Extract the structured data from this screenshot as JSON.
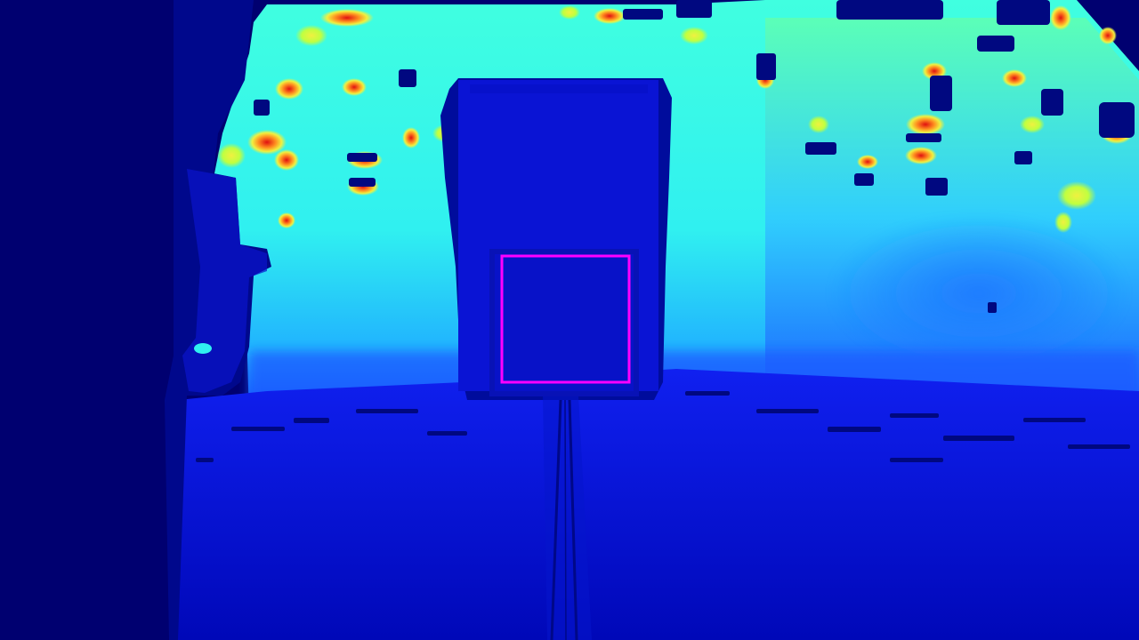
{
  "image": {
    "kind": "depth-map",
    "colormap": "jet",
    "colors": {
      "background_far_left": "#000070",
      "floor_top": "#1020f0",
      "floor_bottom": "#0008b8",
      "wall_cyan": "#30f0f0",
      "wall_light_blue": "#20b0ff",
      "wall_yellow": "#f0f040",
      "wall_orange": "#ff9020",
      "wall_red": "#e01010",
      "doorway_panel": "#0a14d4",
      "doorway_dark_edge": "#000880",
      "inner_box": "#0812c8",
      "selection_box": "#ff00ff"
    },
    "annotations": [
      {
        "type": "bounding-box",
        "label": "",
        "color": "#ff00ff"
      }
    ]
  }
}
